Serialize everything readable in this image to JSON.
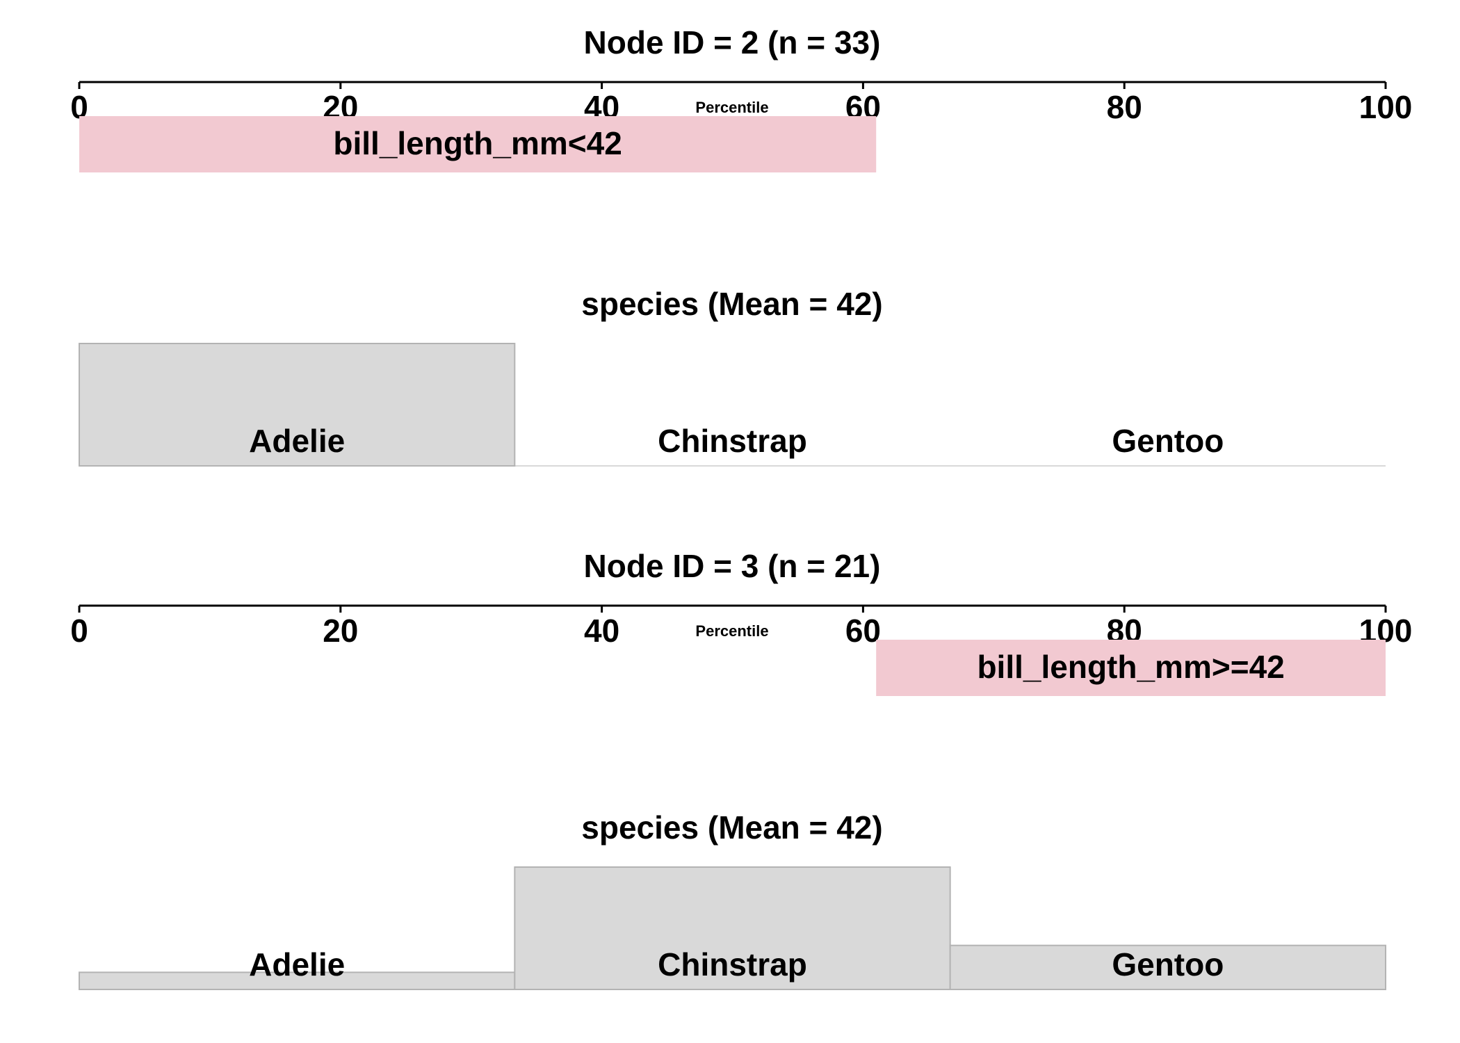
{
  "colors": {
    "rule_fill": "#f2c9d1",
    "bar_fill": "#d9d9d9",
    "bar_stroke": "#b3b3b3",
    "baseline": "#d9d9d9",
    "axis": "#000000"
  },
  "chart_data": [
    {
      "type": "bar",
      "node_title": "Node ID =  2 (n = 33)",
      "axis_label": "Percentile",
      "axis_ticks": [
        "0",
        "20",
        "40",
        "60",
        "80",
        "100"
      ],
      "xlim": [
        0,
        100
      ],
      "rule": {
        "label": "bill_length_mm<42",
        "start": 0,
        "end": 61
      },
      "species_title": "species (Mean = 42)",
      "categories": [
        "Adelie",
        "Chinstrap",
        "Gentoo"
      ],
      "values": [
        1.0,
        0.0,
        0.0
      ]
    },
    {
      "type": "bar",
      "node_title": "Node ID =  3 (n = 21)",
      "axis_label": "Percentile",
      "axis_ticks": [
        "0",
        "20",
        "40",
        "60",
        "80",
        "100"
      ],
      "xlim": [
        0,
        100
      ],
      "rule": {
        "label": "bill_length_mm>=42",
        "start": 61,
        "end": 100
      },
      "species_title": "species (Mean = 42)",
      "categories": [
        "Adelie",
        "Chinstrap",
        "Gentoo"
      ],
      "values": [
        0.14,
        1.0,
        0.36
      ]
    }
  ]
}
